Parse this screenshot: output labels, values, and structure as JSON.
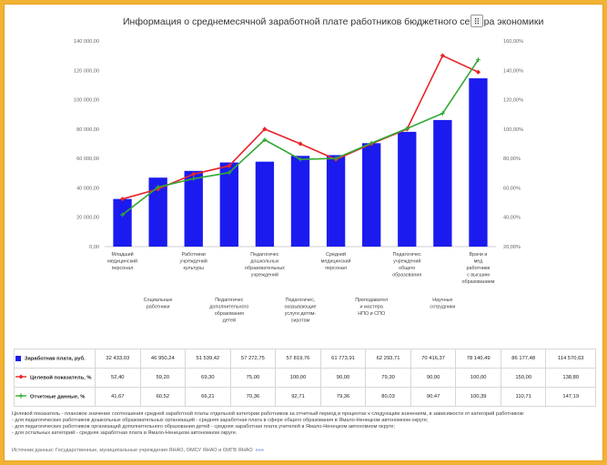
{
  "title": "Информация о среднемесячной заработной плате работников бюджетного сектора экономики",
  "menu_icon": "grid-menu-icon",
  "colors": {
    "bar": "#1b1bef",
    "target": "#e8242a",
    "actual": "#33a833",
    "frame": "#f2b233"
  },
  "chart_data": {
    "type": "bar",
    "categories": [
      "Младший медицинский персонал",
      "Социальные работники",
      "Работники учреждений культуры",
      "Педагогические дополнительного образования детей",
      "Педагогические дошкольных образовательных учреждений",
      "Педагогические, оказывающие услуги детям-сиротам",
      "Средний медицинский персонал",
      "Преподаватели и мастера НПО и СПО",
      "Педагогические учреждений общего образования",
      "Научные сотрудники",
      "Врачи и мед работники с высшим образованием"
    ],
    "category_label_lines": [
      [
        "Младший",
        "медицинский",
        "персонал"
      ],
      [
        "Социальные",
        "работники"
      ],
      [
        "Работники",
        "учреждений",
        "культуры"
      ],
      [
        "Педагогичес",
        "дополнительного",
        "образования",
        "детей"
      ],
      [
        "Педагогичес",
        "дошкольных",
        "образовательных",
        "учреждений"
      ],
      [
        "Педагогичес,",
        "оказывающие",
        "услуги детям-",
        "сиротам"
      ],
      [
        "Средний",
        "медицинский",
        "персонал"
      ],
      [
        "Преподавател",
        "и мастера",
        "НПО и СПО"
      ],
      [
        "Педагогичес",
        "учреждений",
        "общего",
        "образования"
      ],
      [
        "Научные",
        "сотрудники"
      ],
      [
        "Врачи и",
        "мед",
        "работники",
        "с высшим",
        "образованием"
      ]
    ],
    "series": [
      {
        "name": "Заработная плата, руб.",
        "kind": "bar",
        "axis": "left",
        "values": [
          32433.03,
          46950.24,
          51539.42,
          57272.75,
          57819.76,
          61773.91,
          62293.71,
          70416.37,
          78140.49,
          86177.48,
          114570.63
        ],
        "display": [
          "32 433,03",
          "46 950,24",
          "51 539,42",
          "57 272,75",
          "57 819,76",
          "61 773,91",
          "62 293,71",
          "70 416,37",
          "78 140,49",
          "86 177,48",
          "114 570,63"
        ]
      },
      {
        "name": "Целевой показатель, %",
        "kind": "line",
        "axis": "right",
        "values": [
          52.4,
          59.2,
          69.3,
          75.0,
          100.0,
          90.0,
          79.3,
          90.0,
          100.0,
          150.0,
          138.8
        ],
        "display": [
          "52,40",
          "59,20",
          "69,30",
          "75,00",
          "100,00",
          "90,00",
          "79,30",
          "90,00",
          "100,00",
          "150,00",
          "138,80"
        ]
      },
      {
        "name": "Отчетные данные, %",
        "kind": "line",
        "axis": "right",
        "values": [
          41.67,
          60.52,
          66.21,
          70.36,
          92.71,
          79.36,
          80.03,
          90.47,
          100.39,
          110.71,
          147.19
        ],
        "display": [
          "41,67",
          "60,52",
          "66,21",
          "70,36",
          "92,71",
          "79,36",
          "80,03",
          "90,47",
          "100,39",
          "110,71",
          "147,19"
        ]
      }
    ],
    "y_left": {
      "min": 0,
      "max": 140000,
      "ticks": [
        "0,00",
        "20 000,00",
        "40 000,00",
        "60 000,00",
        "80 000,00",
        "100 000,00",
        "120 000,00",
        "140 000,00"
      ]
    },
    "y_right": {
      "min": 20,
      "max": 160,
      "ticks": [
        "20,00%",
        "40,00%",
        "60,00%",
        "80,00%",
        "100,00%",
        "120,00%",
        "140,00%",
        "160,00%"
      ]
    },
    "grid": false,
    "legend": "table-below"
  },
  "note": [
    "Целевой показатель - плановое значение соотношения средней заработной платы отдельной категории работников за отчетный период в процентах к следующим значениям, в зависимости от категорий работников:",
    "- для педагогических работников дошкольных образовательных организаций - средняя заработная плата в сфере общего образования в Ямало-Ненецком автономном округе;",
    "- для педагогических работников организаций дополнительного образования детей - средняя заработная плата учителей в Ямало-Ненецком автономном округе;",
    "- для остальных категорий - средняя заработная плата в Ямало-Ненецком автономном округе."
  ],
  "source": "Источник данных: Государственные, муниципальные учреждения ЯНАО, ОМСУ ЯНАО и ОИГВ ЯНАО",
  "source_more": "»»»"
}
